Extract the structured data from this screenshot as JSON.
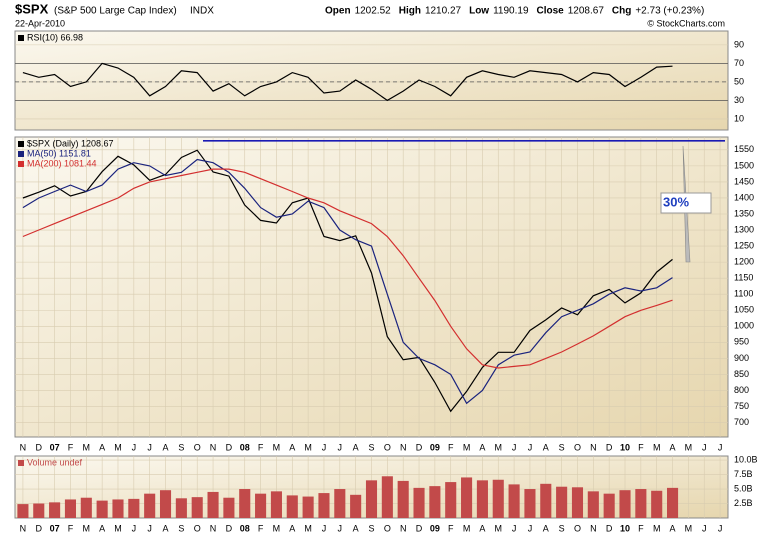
{
  "header": {
    "title": "$SPX",
    "subtitle": "(S&P 500 Large Cap Index)",
    "exchange": "INDX",
    "date": "22-Apr-2010",
    "quote": [
      {
        "label": "Open",
        "value": "1202.52"
      },
      {
        "label": "High",
        "value": "1210.27"
      },
      {
        "label": "Low",
        "value": "1190.19"
      },
      {
        "label": "Close",
        "value": "1208.67"
      },
      {
        "label": "Chg",
        "value": "+2.73 (+0.23%)"
      }
    ],
    "credit": "© StockCharts.com"
  },
  "chart_data": [
    {
      "type": "line",
      "ylim": [
        -2,
        105
      ],
      "yticks": [
        10,
        30,
        50,
        70,
        90
      ],
      "levels": [
        30,
        50,
        70
      ],
      "grid": true,
      "series": [
        {
          "name": "RSI(10) 66.98",
          "color": "#000000",
          "values": [
            60,
            55,
            58,
            45,
            50,
            70,
            65,
            55,
            35,
            45,
            62,
            60,
            40,
            48,
            35,
            45,
            50,
            60,
            55,
            38,
            40,
            52,
            42,
            30,
            40,
            52,
            45,
            35,
            55,
            62,
            58,
            55,
            62,
            60,
            58,
            50,
            60,
            58,
            45,
            55,
            66,
            66.98,
            null,
            null,
            null
          ]
        }
      ]
    },
    {
      "type": "line",
      "ylim": [
        655,
        1590
      ],
      "yticks": [
        700,
        750,
        800,
        850,
        900,
        950,
        1000,
        1050,
        1100,
        1150,
        1200,
        1250,
        1300,
        1350,
        1400,
        1450,
        1500,
        1550
      ],
      "grid": true,
      "hline": 1578,
      "annotation": "30%",
      "categories": [
        "N",
        "D",
        "07",
        "F",
        "M",
        "A",
        "M",
        "J",
        "J",
        "A",
        "S",
        "O",
        "N",
        "D",
        "08",
        "F",
        "M",
        "A",
        "M",
        "J",
        "J",
        "A",
        "S",
        "O",
        "N",
        "D",
        "09",
        "F",
        "M",
        "A",
        "M",
        "J",
        "J",
        "A",
        "S",
        "O",
        "N",
        "D",
        "10",
        "F",
        "M",
        "A",
        "M",
        "J",
        "J"
      ],
      "series": [
        {
          "name": "$SPX (Daily) 1208.67",
          "color": "#000000",
          "values": [
            1400,
            1418,
            1438,
            1406,
            1420,
            1482,
            1530,
            1503,
            1455,
            1473,
            1526,
            1549,
            1481,
            1468,
            1378,
            1330,
            1322,
            1385,
            1400,
            1280,
            1267,
            1282,
            1166,
            968,
            896,
            903,
            825,
            735,
            797,
            872,
            919,
            919,
            987,
            1020,
            1057,
            1036,
            1095,
            1115,
            1073,
            1104,
            1169,
            1208.67,
            null,
            null,
            null
          ]
        },
        {
          "name": "MA(50) 1151.81",
          "color": "#1a237e",
          "values": [
            1370,
            1400,
            1420,
            1440,
            1420,
            1440,
            1490,
            1510,
            1500,
            1470,
            1480,
            1520,
            1510,
            1480,
            1430,
            1370,
            1340,
            1350,
            1390,
            1370,
            1300,
            1270,
            1250,
            1100,
            950,
            900,
            880,
            850,
            760,
            800,
            880,
            910,
            920,
            980,
            1030,
            1050,
            1070,
            1100,
            1120,
            1110,
            1120,
            1151.81,
            null,
            null,
            null
          ]
        },
        {
          "name": "MA(200) 1081.44",
          "color": "#d32f2f",
          "values": [
            1280,
            1300,
            1320,
            1340,
            1360,
            1380,
            1400,
            1430,
            1450,
            1460,
            1470,
            1480,
            1490,
            1490,
            1480,
            1460,
            1440,
            1420,
            1400,
            1385,
            1360,
            1340,
            1320,
            1280,
            1220,
            1150,
            1080,
            1000,
            930,
            880,
            870,
            875,
            880,
            900,
            920,
            945,
            970,
            1000,
            1030,
            1050,
            1065,
            1081.44,
            null,
            null,
            null
          ]
        }
      ]
    },
    {
      "type": "bar",
      "ylim": [
        0,
        10700000000
      ],
      "yticks": [
        {
          "value": 2500000000,
          "label": "2.5B"
        },
        {
          "value": 5000000000,
          "label": "5.0B"
        },
        {
          "value": 7500000000,
          "label": "7.5B"
        },
        {
          "value": 10000000000,
          "label": "10.0B"
        }
      ],
      "grid": true,
      "categories": [
        "N",
        "D",
        "07",
        "F",
        "M",
        "A",
        "M",
        "J",
        "J",
        "A",
        "S",
        "O",
        "N",
        "D",
        "08",
        "F",
        "M",
        "A",
        "M",
        "J",
        "J",
        "A",
        "S",
        "O",
        "N",
        "D",
        "09",
        "F",
        "M",
        "A",
        "M",
        "J",
        "J",
        "A",
        "S",
        "O",
        "N",
        "D",
        "10",
        "F",
        "M",
        "A",
        "M",
        "J",
        "J"
      ],
      "series": [
        {
          "name": "Volume undef",
          "color": "#c24a4a",
          "values": [
            2400000000,
            2500000000,
            2700000000,
            3200000000,
            3500000000,
            3000000000,
            3200000000,
            3300000000,
            4200000000,
            4800000000,
            3400000000,
            3600000000,
            4500000000,
            3500000000,
            5000000000,
            4200000000,
            4600000000,
            3900000000,
            3700000000,
            4300000000,
            5000000000,
            4000000000,
            6500000000,
            7200000000,
            6400000000,
            5200000000,
            5500000000,
            6200000000,
            7000000000,
            6500000000,
            6600000000,
            5800000000,
            5000000000,
            5900000000,
            5400000000,
            5300000000,
            4600000000,
            4200000000,
            4800000000,
            5000000000,
            4700000000,
            5200000000,
            null,
            null,
            null
          ]
        }
      ]
    }
  ]
}
